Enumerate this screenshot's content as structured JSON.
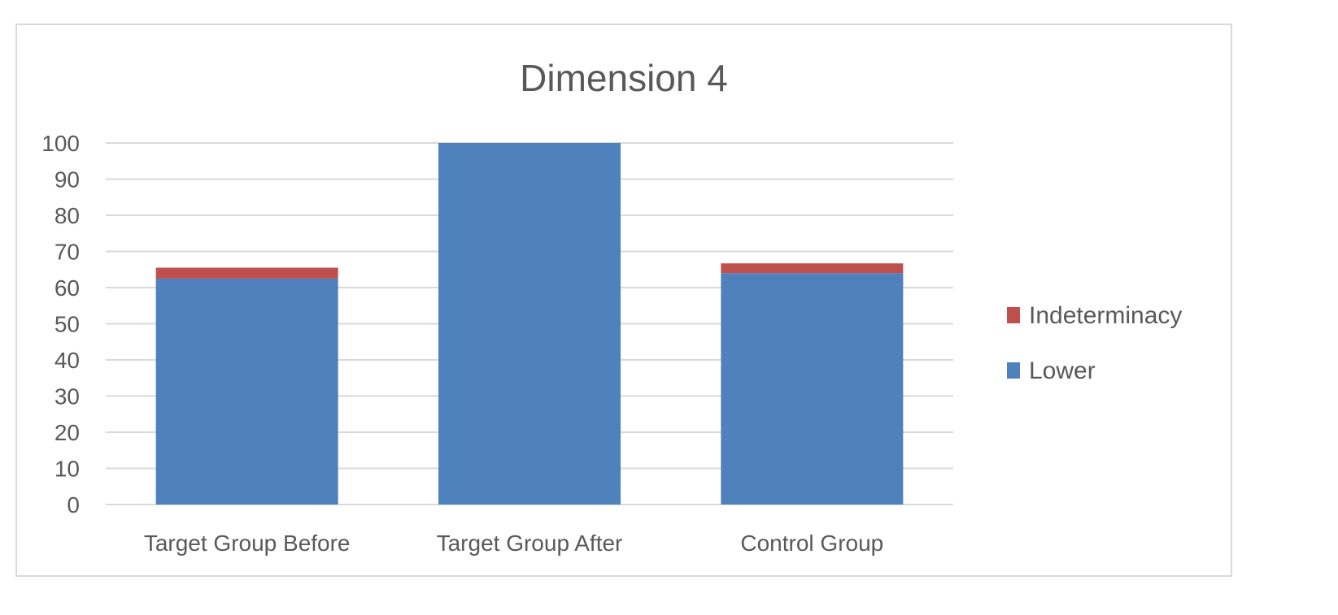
{
  "chart_data": {
    "type": "bar",
    "stacked": true,
    "title": "Dimension 4",
    "xlabel": "",
    "ylabel": "",
    "categories": [
      "Target Group Before",
      "Target Group After",
      "Control Group"
    ],
    "series": [
      {
        "name": "Lower",
        "values": [
          62.5,
          100,
          64
        ],
        "color": "#4f81bd"
      },
      {
        "name": "Indeterminacy",
        "values": [
          3,
          0,
          2.7
        ],
        "color": "#c0504d"
      }
    ],
    "ylim": [
      0,
      100
    ],
    "yticks": [
      0,
      10,
      20,
      30,
      40,
      50,
      60,
      70,
      80,
      90,
      100
    ],
    "grid": true,
    "legend_position": "right",
    "colors": {
      "gridline": "#d9d9d9",
      "text": "#595959",
      "border": "#d9d9d9"
    }
  }
}
